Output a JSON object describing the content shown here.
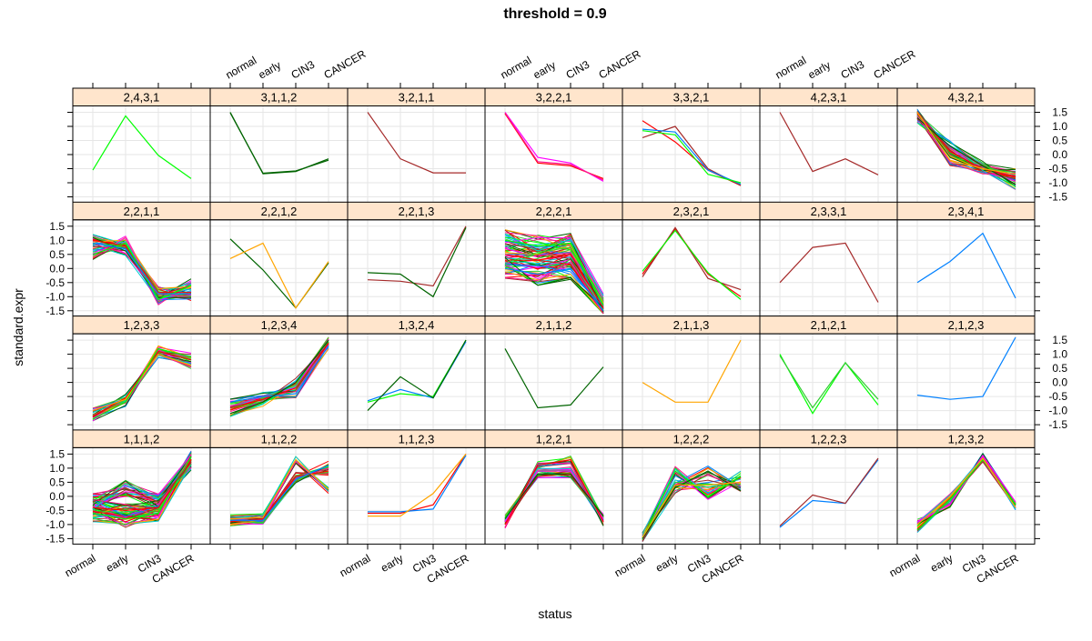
{
  "chart_data": {
    "type": "line",
    "title": "threshold = 0.9",
    "xlabel": "status",
    "ylabel": "standard.expr",
    "categories": [
      "normal",
      "early",
      "CIN3",
      "CANCER"
    ],
    "ylim": [
      -1.7,
      1.7
    ],
    "yticks": [
      "-1.5",
      "-1.0",
      "-0.5",
      "0.0",
      "0.5",
      "1.0",
      "1.5"
    ],
    "ytick_values": [
      -1.5,
      -1.0,
      -0.5,
      0.0,
      0.5,
      1.0,
      1.5
    ],
    "grid": true,
    "layout": {
      "columns": 7,
      "rows": 4
    },
    "palette": [
      "#ff0000",
      "#00ff00",
      "#0080ff",
      "#ffa500",
      "#ff00ff",
      "#006400",
      "#a52a2a",
      "#00ced1",
      "#ff1493",
      "#32cd32"
    ],
    "panels": [
      {
        "label": "2,4,3,1",
        "lines": [
          {
            "color": "#00ff00",
            "values": [
              -0.55,
              1.37,
              -0.03,
              -0.85
            ]
          }
        ]
      },
      {
        "label": "3,1,1,2",
        "lines": [
          {
            "color": "#006400",
            "values": [
              1.5,
              -0.68,
              -0.6,
              -0.15
            ]
          },
          {
            "color": "#006400",
            "values": [
              1.48,
              -0.66,
              -0.58,
              -0.2
            ]
          }
        ]
      },
      {
        "label": "3,2,1,1",
        "lines": [
          {
            "color": "#a52a2a",
            "values": [
              1.5,
              -0.15,
              -0.65,
              -0.65
            ]
          }
        ]
      },
      {
        "label": "3,2,2,1",
        "lines": [
          {
            "color": "#ff00ff",
            "values": [
              1.5,
              -0.1,
              -0.3,
              -0.95
            ]
          },
          {
            "color": "#ff0000",
            "values": [
              1.45,
              -0.3,
              -0.4,
              -0.85
            ]
          },
          {
            "color": "#ff1493",
            "values": [
              1.48,
              -0.25,
              -0.35,
              -0.9
            ]
          }
        ]
      },
      {
        "label": "3,3,2,1",
        "lines": [
          {
            "color": "#ff0000",
            "values": [
              1.2,
              0.45,
              -0.55,
              -1.1
            ]
          },
          {
            "color": "#a52a2a",
            "values": [
              0.6,
              1.0,
              -0.5,
              -1.1
            ]
          },
          {
            "color": "#0080ff",
            "values": [
              0.9,
              0.8,
              -0.55,
              -1.05
            ]
          },
          {
            "color": "#00ff00",
            "values": [
              0.85,
              0.7,
              -0.7,
              -1.0
            ]
          }
        ]
      },
      {
        "label": "4,2,3,1",
        "lines": [
          {
            "color": "#a52a2a",
            "values": [
              1.5,
              -0.6,
              -0.15,
              -0.72
            ]
          }
        ]
      },
      {
        "label": "4,3,2,1",
        "lines": [
          {
            "color": "#ff0000",
            "values": [
              1.45,
              0.1,
              -0.5,
              -0.8
            ]
          },
          {
            "color": "#006400",
            "values": [
              1.3,
              0.3,
              -0.4,
              -1.05
            ]
          },
          {
            "color": "#ffa500",
            "values": [
              1.5,
              -0.2,
              -0.5,
              -0.7
            ]
          }
        ],
        "spread": 0.2,
        "count": 40
      },
      {
        "label": "2,2,1,1",
        "lines": [
          {
            "color": "#ff0000",
            "values": [
              1.0,
              0.8,
              -0.85,
              -0.85
            ]
          },
          {
            "color": "#00ff00",
            "values": [
              0.5,
              0.9,
              -1.1,
              -0.6
            ]
          },
          {
            "color": "#0080ff",
            "values": [
              0.9,
              0.7,
              -0.9,
              -0.9
            ]
          }
        ],
        "spread": 0.25,
        "count": 40
      },
      {
        "label": "2,2,1,2",
        "lines": [
          {
            "color": "#006400",
            "values": [
              1.05,
              -0.05,
              -1.4,
              0.2
            ]
          },
          {
            "color": "#ffa500",
            "values": [
              0.35,
              0.9,
              -1.4,
              0.25
            ]
          }
        ]
      },
      {
        "label": "2,2,1,3",
        "lines": [
          {
            "color": "#a52a2a",
            "values": [
              -0.4,
              -0.45,
              -0.62,
              1.5
            ]
          },
          {
            "color": "#006400",
            "values": [
              -0.15,
              -0.2,
              -1.0,
              1.45
            ]
          }
        ]
      },
      {
        "label": "2,2,2,1",
        "lines": [
          {
            "color": "#ff0000",
            "values": [
              0.5,
              0.3,
              0.5,
              -1.4
            ]
          },
          {
            "color": "#00ff00",
            "values": [
              1.0,
              0.8,
              0.9,
              -1.3
            ]
          },
          {
            "color": "#0080ff",
            "values": [
              0.0,
              -0.2,
              0.0,
              -1.5
            ]
          }
        ],
        "spread": 0.4,
        "count": 70
      },
      {
        "label": "2,3,2,1",
        "lines": [
          {
            "color": "#ff0000",
            "values": [
              -0.2,
              1.4,
              -0.2,
              -1.0
            ]
          },
          {
            "color": "#a52a2a",
            "values": [
              -0.3,
              1.45,
              -0.35,
              -0.75
            ]
          },
          {
            "color": "#00ff00",
            "values": [
              -0.1,
              1.35,
              -0.15,
              -1.1
            ]
          }
        ]
      },
      {
        "label": "2,3,3,1",
        "lines": [
          {
            "color": "#a52a2a",
            "values": [
              -0.5,
              0.75,
              0.9,
              -1.2
            ]
          }
        ]
      },
      {
        "label": "2,3,4,1",
        "lines": [
          {
            "color": "#0080ff",
            "values": [
              -0.5,
              0.25,
              1.25,
              -1.05
            ]
          }
        ]
      },
      {
        "label": "1,2,3,3",
        "lines": [
          {
            "color": "#ff0000",
            "values": [
              -1.2,
              -0.55,
              1.1,
              0.8
            ]
          },
          {
            "color": "#ffa500",
            "values": [
              -1.0,
              -0.6,
              1.0,
              0.6
            ]
          },
          {
            "color": "#00ff00",
            "values": [
              -1.3,
              -0.7,
              1.2,
              0.9
            ]
          }
        ],
        "spread": 0.15,
        "count": 30
      },
      {
        "label": "1,2,3,4",
        "lines": [
          {
            "color": "#ff0000",
            "values": [
              -0.9,
              -0.6,
              -0.2,
              1.4
            ]
          },
          {
            "color": "#0080ff",
            "values": [
              -0.7,
              -0.5,
              -0.4,
              1.3
            ]
          },
          {
            "color": "#006400",
            "values": [
              -1.1,
              -0.7,
              0.0,
              1.5
            ]
          }
        ],
        "spread": 0.15,
        "count": 30
      },
      {
        "label": "1,3,2,4",
        "lines": [
          {
            "color": "#00ff00",
            "values": [
              -0.7,
              -0.4,
              -0.5,
              1.5
            ]
          },
          {
            "color": "#0080ff",
            "values": [
              -0.65,
              -0.25,
              -0.55,
              1.45
            ]
          },
          {
            "color": "#006400",
            "values": [
              -1.0,
              0.2,
              -0.55,
              1.5
            ]
          }
        ]
      },
      {
        "label": "2,1,1,2",
        "lines": [
          {
            "color": "#006400",
            "values": [
              1.2,
              -0.9,
              -0.8,
              0.55
            ]
          }
        ]
      },
      {
        "label": "2,1,1,3",
        "lines": [
          {
            "color": "#ffa500",
            "values": [
              0.0,
              -0.7,
              -0.7,
              1.5
            ]
          }
        ]
      },
      {
        "label": "2,1,2,1",
        "lines": [
          {
            "color": "#00ff00",
            "values": [
              1.0,
              -1.1,
              0.7,
              -0.8
            ]
          },
          {
            "color": "#32cd32",
            "values": [
              0.95,
              -0.9,
              0.7,
              -0.6
            ]
          }
        ]
      },
      {
        "label": "2,1,2,3",
        "lines": [
          {
            "color": "#0080ff",
            "values": [
              -0.45,
              -0.6,
              -0.5,
              1.6
            ]
          }
        ]
      },
      {
        "label": "1,1,1,2",
        "lines": [
          {
            "color": "#ff0000",
            "values": [
              -0.4,
              -0.5,
              -0.4,
              1.3
            ]
          },
          {
            "color": "#00ff00",
            "values": [
              -0.6,
              -0.8,
              -0.6,
              1.4
            ]
          },
          {
            "color": "#a52a2a",
            "values": [
              -0.2,
              0.3,
              -0.2,
              1.2
            ]
          }
        ],
        "spread": 0.3,
        "count": 80
      },
      {
        "label": "1,1,2,2",
        "lines": [
          {
            "color": "#ff0000",
            "values": [
              -0.9,
              -0.8,
              0.7,
              0.9
            ]
          },
          {
            "color": "#ffa500",
            "values": [
              -0.8,
              -0.75,
              1.3,
              0.25
            ]
          },
          {
            "color": "#0080ff",
            "values": [
              -0.85,
              -0.85,
              0.6,
              1.1
            ]
          }
        ],
        "spread": 0.15,
        "count": 40
      },
      {
        "label": "1,1,2,3",
        "lines": [
          {
            "color": "#ff0000",
            "values": [
              -0.6,
              -0.6,
              -0.3,
              1.5
            ]
          },
          {
            "color": "#0080ff",
            "values": [
              -0.55,
              -0.55,
              -0.45,
              1.45
            ]
          },
          {
            "color": "#ffa500",
            "values": [
              -0.7,
              -0.7,
              0.1,
              1.5
            ]
          }
        ]
      },
      {
        "label": "1,2,2,1",
        "lines": [
          {
            "color": "#ff00ff",
            "values": [
              -0.9,
              0.9,
              0.9,
              -0.8
            ]
          },
          {
            "color": "#ff0000",
            "values": [
              -1.0,
              1.1,
              1.3,
              -0.9
            ]
          },
          {
            "color": "#006400",
            "values": [
              -0.8,
              0.8,
              0.8,
              -0.7
            ]
          }
        ],
        "spread": 0.15,
        "count": 30
      },
      {
        "label": "1,2,2,2",
        "lines": [
          {
            "color": "#00ff00",
            "values": [
              -1.5,
              0.9,
              0.0,
              0.7
            ]
          },
          {
            "color": "#006400",
            "values": [
              -1.5,
              0.3,
              0.9,
              0.2
            ]
          },
          {
            "color": "#ffa500",
            "values": [
              -1.45,
              0.4,
              0.4,
              0.5
            ]
          }
        ],
        "spread": 0.2,
        "count": 30
      },
      {
        "label": "1,2,2,3",
        "lines": [
          {
            "color": "#0080ff",
            "values": [
              -1.1,
              -0.15,
              -0.25,
              1.3
            ]
          },
          {
            "color": "#a52a2a",
            "values": [
              -1.05,
              0.05,
              -0.25,
              1.35
            ]
          }
        ]
      },
      {
        "label": "1,2,3,2",
        "lines": [
          {
            "color": "#ff00ff",
            "values": [
              -0.9,
              -0.3,
              1.45,
              -0.2
            ]
          },
          {
            "color": "#00ff00",
            "values": [
              -1.2,
              -0.1,
              1.3,
              -0.3
            ]
          },
          {
            "color": "#ffa500",
            "values": [
              -1.0,
              0.0,
              1.35,
              -0.4
            ]
          }
        ],
        "spread": 0.1,
        "count": 20
      }
    ]
  }
}
